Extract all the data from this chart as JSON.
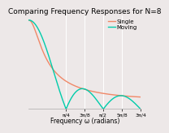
{
  "title": "Comparing Frequency Responses for N=8",
  "xlabel": "Frequency ω (radians)",
  "N": 8,
  "xlim": [
    0,
    2.356194
  ],
  "ylim": [
    0,
    1.05
  ],
  "xticks": [
    0.785398,
    1.178097,
    1.570796,
    1.963495,
    2.356194
  ],
  "xtick_labels": [
    "π/4",
    "3π/8",
    "π/2",
    "5π/8",
    "3π/4"
  ],
  "single_pole_color": "#f08868",
  "moving_avg_color": "#00ccaa",
  "legend_single": "Single",
  "legend_moving": "Moving",
  "background_color": "#ede8e8",
  "grid_color": "#ffffff",
  "title_fontsize": 6.5,
  "label_fontsize": 5.5,
  "tick_fontsize": 4.5,
  "legend_fontsize": 5.0,
  "alpha_iir": 0.7778
}
